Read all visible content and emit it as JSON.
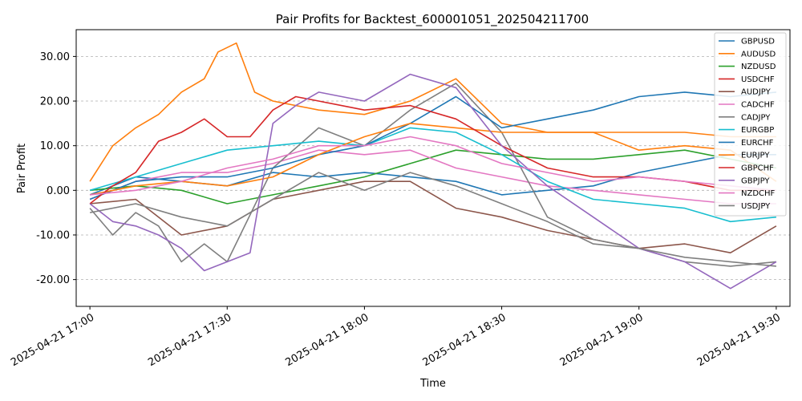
{
  "chart_data": {
    "type": "line",
    "title": "Pair Profits for Backtest_600001051_202504211700",
    "xlabel": "Time",
    "ylabel": "Pair Profit",
    "xlim": [
      "2025-04-21 16:57",
      "2025-04-21 19:33"
    ],
    "ylim": [
      -26,
      36
    ],
    "yticks": [
      -20,
      -10,
      0,
      10,
      20,
      30
    ],
    "ytick_labels": [
      "-20.00",
      "-10.00",
      "0.00",
      "10.00",
      "20.00",
      "30.00"
    ],
    "xticks": [
      "2025-04-21 17:00",
      "2025-04-21 17:30",
      "2025-04-21 18:00",
      "2025-04-21 18:30",
      "2025-04-21 19:00",
      "2025-04-21 19:30"
    ],
    "grid": "y-dashed",
    "legend_position": "top-right",
    "series": [
      {
        "name": "GBPUSD",
        "color": "#1f77b4",
        "x": [
          "17:00",
          "17:10",
          "17:20",
          "17:30",
          "17:40",
          "17:50",
          "18:00",
          "18:10",
          "18:20",
          "18:30",
          "18:40",
          "18:50",
          "19:00",
          "19:10",
          "19:20",
          "19:30"
        ],
        "values": [
          -1,
          3,
          2,
          1,
          4,
          3,
          4,
          3,
          2,
          -1,
          0,
          1,
          4,
          6,
          8,
          8
        ]
      },
      {
        "name": "AUDUSD",
        "color": "#ff7f0e",
        "x": [
          "17:00",
          "17:05",
          "17:10",
          "17:15",
          "17:20",
          "17:25",
          "17:28",
          "17:32",
          "17:36",
          "17:40",
          "17:50",
          "18:00",
          "18:10",
          "18:20",
          "18:30",
          "18:40",
          "18:50",
          "19:00",
          "19:10",
          "19:20",
          "19:30"
        ],
        "values": [
          2,
          10,
          14,
          17,
          22,
          25,
          31,
          33,
          22,
          20,
          18,
          17,
          20,
          25,
          15,
          13,
          13,
          9,
          10,
          9,
          2
        ]
      },
      {
        "name": "NZDUSD",
        "color": "#2ca02c",
        "x": [
          "17:00",
          "17:10",
          "17:20",
          "17:30",
          "17:40",
          "17:50",
          "18:00",
          "18:10",
          "18:20",
          "18:30",
          "18:40",
          "18:50",
          "19:00",
          "19:10",
          "19:20",
          "19:30"
        ],
        "values": [
          0,
          1,
          0,
          -3,
          -1,
          1,
          3,
          6,
          9,
          8,
          7,
          7,
          8,
          9,
          7,
          5
        ]
      },
      {
        "name": "USDCHF",
        "color": "#d62728",
        "x": [],
        "values": []
      },
      {
        "name": "AUDJPY",
        "color": "#8c564b",
        "x": [
          "17:00",
          "17:10",
          "17:20",
          "17:30",
          "17:40",
          "17:50",
          "18:00",
          "18:10",
          "18:20",
          "18:30",
          "18:40",
          "18:50",
          "19:00",
          "19:10",
          "19:20",
          "19:30"
        ],
        "values": [
          -3,
          -2,
          -10,
          -8,
          -2,
          0,
          2,
          2,
          -4,
          -6,
          -9,
          -11,
          -13,
          -12,
          -14,
          -8
        ]
      },
      {
        "name": "CADCHF",
        "color": "#e377c2",
        "x": [
          "17:00",
          "17:10",
          "17:20",
          "17:30",
          "17:40",
          "17:50",
          "18:00",
          "18:10",
          "18:20",
          "18:30",
          "18:40",
          "18:50",
          "19:00",
          "19:10",
          "19:20",
          "19:30"
        ],
        "values": [
          -2,
          2,
          4,
          4,
          6,
          9,
          8,
          9,
          5,
          3,
          1,
          0,
          -1,
          -2,
          -3,
          -3
        ]
      },
      {
        "name": "CADJPY",
        "color": "#7f7f7f",
        "x": [
          "17:00",
          "17:05",
          "17:10",
          "17:15",
          "17:20",
          "17:25",
          "17:30",
          "17:40",
          "17:50",
          "18:00",
          "18:10",
          "18:20",
          "18:30",
          "18:40",
          "18:50",
          "19:00",
          "19:10",
          "19:20",
          "19:30"
        ],
        "values": [
          -4,
          -10,
          -5,
          -8,
          -16,
          -12,
          -16,
          5,
          14,
          10,
          18,
          24,
          13,
          -6,
          -11,
          -13,
          -16,
          -17,
          -16
        ]
      },
      {
        "name": "EURGBP",
        "color": "#17becf",
        "x": [
          "17:00",
          "17:10",
          "17:20",
          "17:30",
          "17:40",
          "17:50",
          "18:00",
          "18:10",
          "18:20",
          "18:30",
          "18:40",
          "18:50",
          "19:00",
          "19:10",
          "19:20",
          "19:30"
        ],
        "values": [
          0,
          3,
          6,
          9,
          10,
          11,
          10,
          14,
          13,
          8,
          2,
          -2,
          -3,
          -4,
          -7,
          -6
        ]
      },
      {
        "name": "EURCHF",
        "color": "#1f77b4",
        "x": [
          "17:00",
          "17:10",
          "17:20",
          "17:30",
          "17:40",
          "17:50",
          "18:00",
          "18:10",
          "18:20",
          "18:30",
          "18:40",
          "18:50",
          "19:00",
          "19:10",
          "19:20",
          "19:30"
        ],
        "values": [
          -2,
          2,
          3,
          3,
          5,
          8,
          10,
          15,
          21,
          14,
          16,
          18,
          21,
          22,
          21,
          22
        ]
      },
      {
        "name": "EURJPY",
        "color": "#ff7f0e",
        "x": [
          "17:00",
          "17:10",
          "17:20",
          "17:30",
          "17:40",
          "17:50",
          "18:00",
          "18:10",
          "18:20",
          "18:30",
          "18:40",
          "18:50",
          "19:00",
          "19:10",
          "19:20",
          "19:30"
        ],
        "values": [
          -1,
          1,
          2,
          1,
          3,
          8,
          12,
          15,
          14,
          13,
          13,
          13,
          13,
          13,
          12,
          12
        ]
      },
      {
        "name": "GBPCHF",
        "color": "#d62728",
        "x": [
          "17:00",
          "17:05",
          "17:10",
          "17:15",
          "17:20",
          "17:25",
          "17:30",
          "17:35",
          "17:40",
          "17:45",
          "17:50",
          "18:00",
          "18:10",
          "18:20",
          "18:30",
          "18:40",
          "18:50",
          "19:00",
          "19:10",
          "19:20",
          "19:30"
        ],
        "values": [
          -3,
          1,
          4,
          11,
          13,
          16,
          12,
          12,
          18,
          21,
          20,
          18,
          19,
          16,
          10,
          5,
          3,
          3,
          2,
          0,
          0
        ]
      },
      {
        "name": "GBPJPY",
        "color": "#9467bd",
        "x": [
          "17:00",
          "17:05",
          "17:10",
          "17:15",
          "17:20",
          "17:25",
          "17:30",
          "17:35",
          "17:40",
          "17:45",
          "17:50",
          "18:00",
          "18:10",
          "18:20",
          "18:30",
          "18:40",
          "18:50",
          "19:00",
          "19:10",
          "19:20",
          "19:30"
        ],
        "values": [
          -3,
          -7,
          -8,
          -10,
          -13,
          -18,
          -16,
          -14,
          15,
          19,
          22,
          20,
          26,
          23,
          10,
          1,
          -6,
          -13,
          -16,
          -22,
          -16
        ]
      },
      {
        "name": "NZDCHF",
        "color": "#e377c2",
        "x": [
          "17:00",
          "17:10",
          "17:20",
          "17:30",
          "17:40",
          "17:50",
          "18:00",
          "18:10",
          "18:20",
          "18:30",
          "18:40",
          "18:50",
          "19:00",
          "19:10",
          "19:20",
          "19:30"
        ],
        "values": [
          -1,
          0,
          2,
          5,
          7,
          10,
          10,
          12,
          10,
          6,
          4,
          2,
          3,
          2,
          1,
          0
        ]
      },
      {
        "name": "USDJPY",
        "color": "#7f7f7f",
        "x": [
          "17:00",
          "17:10",
          "17:20",
          "17:30",
          "17:40",
          "17:50",
          "18:00",
          "18:10",
          "18:20",
          "18:30",
          "18:40",
          "18:50",
          "19:00",
          "19:10",
          "19:20",
          "19:30"
        ],
        "values": [
          -5,
          -3,
          -6,
          -8,
          -2,
          4,
          0,
          4,
          1,
          -3,
          -7,
          -12,
          -13,
          -15,
          -16,
          -17
        ]
      }
    ]
  }
}
